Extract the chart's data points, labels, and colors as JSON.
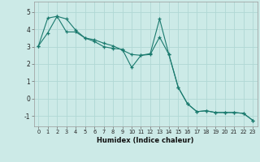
{
  "xlabel": "Humidex (Indice chaleur)",
  "background_color": "#cceae7",
  "grid_color": "#b0d8d4",
  "line_color": "#1a7a6e",
  "xlim": [
    -0.5,
    23.5
  ],
  "ylim": [
    -1.6,
    5.6
  ],
  "yticks": [
    -1,
    0,
    1,
    2,
    3,
    4,
    5
  ],
  "xticks": [
    0,
    1,
    2,
    3,
    4,
    5,
    6,
    7,
    8,
    9,
    10,
    11,
    12,
    13,
    14,
    15,
    16,
    17,
    18,
    19,
    20,
    21,
    22,
    23
  ],
  "series1_x": [
    0,
    1,
    2,
    3,
    4,
    5,
    6,
    7,
    8,
    9,
    10,
    11,
    12,
    13,
    14,
    15,
    16,
    17,
    18,
    19,
    20,
    21,
    22,
    23
  ],
  "series1_y": [
    3.05,
    3.8,
    4.75,
    4.6,
    3.95,
    3.5,
    3.4,
    3.2,
    3.05,
    2.8,
    2.55,
    2.5,
    2.55,
    3.55,
    2.55,
    0.65,
    -0.3,
    -0.75,
    -0.7,
    -0.8,
    -0.8,
    -0.8,
    -0.85,
    -1.25
  ],
  "series2_x": [
    0,
    1,
    2,
    3,
    4,
    5,
    6,
    7,
    8,
    9,
    10,
    11,
    12,
    13,
    14,
    15,
    16,
    17,
    18,
    19,
    20,
    21,
    22,
    23
  ],
  "series2_y": [
    3.05,
    4.65,
    4.75,
    3.85,
    3.85,
    3.5,
    3.3,
    3.0,
    2.9,
    2.85,
    1.8,
    2.5,
    2.6,
    4.6,
    2.55,
    0.65,
    -0.3,
    -0.75,
    -0.7,
    -0.8,
    -0.8,
    -0.8,
    -0.85,
    -1.25
  ]
}
